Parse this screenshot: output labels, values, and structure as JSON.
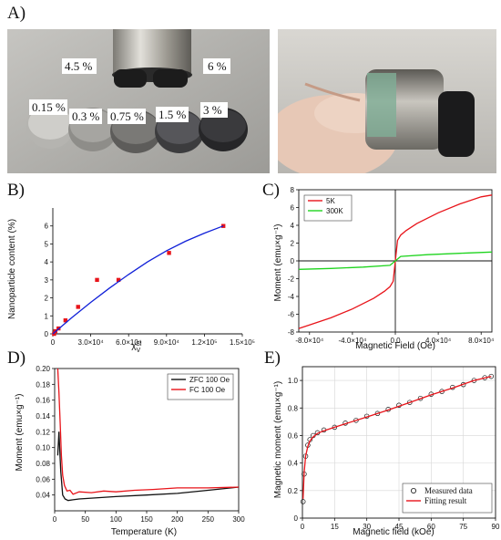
{
  "panels": {
    "a": "A)",
    "b": "B)",
    "c": "C)",
    "d": "D)",
    "e": "E)"
  },
  "photo_a": {
    "labels": [
      "4.5 %",
      "6 %",
      "0.15 %",
      "0.3 %",
      "0.75 %",
      "1.5 %",
      "3 %"
    ]
  },
  "colors": {
    "red": "#e8141a",
    "blue": "#1020d8",
    "green": "#1ed41e",
    "black": "#111111"
  },
  "chart_data": [
    {
      "id": "B",
      "type": "scatter",
      "xlabel": "χ",
      "xlabel_sub": "V",
      "xlabel_sup": "SI",
      "ylabel": "Nanoparticle content (%)",
      "xlim": [
        0,
        150000
      ],
      "ylim": [
        0,
        7
      ],
      "xticks": [
        0,
        30000,
        60000,
        90000,
        120000,
        150000
      ],
      "xtick_labels": [
        "0",
        "3.0×10⁴",
        "6.0×10⁴",
        "9.0×10⁴",
        "1.2×10⁵",
        "1.5×10⁵"
      ],
      "yticks": [
        0,
        1,
        2,
        3,
        4,
        5,
        6
      ],
      "series": [
        {
          "kind": "points",
          "color": "#e8141a",
          "x": [
            1000,
            2000,
            4500,
            10000,
            20000,
            35000,
            52000,
            92000,
            135000
          ],
          "y": [
            0,
            0.15,
            0.3,
            0.75,
            1.5,
            3.0,
            3.0,
            4.5,
            6.0
          ]
        },
        {
          "kind": "fit",
          "color": "#1020d8",
          "x": [
            0,
            15000,
            30000,
            45000,
            60000,
            75000,
            90000,
            105000,
            120000,
            135000
          ],
          "y": [
            0,
            0.9,
            1.75,
            2.55,
            3.3,
            4.0,
            4.62,
            5.15,
            5.6,
            6.0
          ]
        }
      ]
    },
    {
      "id": "C",
      "type": "line",
      "xlabel": "Magnetic Field (Oe)",
      "ylabel": "Moment (emu×g⁻¹)",
      "xlim": [
        -90000,
        90000
      ],
      "ylim": [
        -8,
        8
      ],
      "xticks": [
        -80000,
        -40000,
        0,
        40000,
        80000
      ],
      "xtick_labels": [
        "-8.0×10⁴",
        "-4.0×10⁴",
        "0.0",
        "4.0×10⁴",
        "8.0×10⁴"
      ],
      "yticks": [
        -8,
        -6,
        -4,
        -2,
        0,
        2,
        4,
        6,
        8
      ],
      "legend": "top-left",
      "series": [
        {
          "name": "5K",
          "color": "#e8141a",
          "x": [
            -90000,
            -80000,
            -60000,
            -40000,
            -20000,
            -10000,
            -5000,
            -2000,
            0,
            2000,
            5000,
            10000,
            20000,
            40000,
            60000,
            80000,
            90000
          ],
          "y": [
            -7.6,
            -7.2,
            -6.4,
            -5.4,
            -4.2,
            -3.4,
            -2.9,
            -2.3,
            0,
            2.3,
            2.9,
            3.4,
            4.2,
            5.4,
            6.4,
            7.2,
            7.4
          ]
        },
        {
          "name": "300K",
          "color": "#1ed41e",
          "x": [
            -90000,
            -60000,
            -30000,
            -5000,
            0,
            5000,
            30000,
            60000,
            90000
          ],
          "y": [
            -0.95,
            -0.85,
            -0.7,
            -0.5,
            0,
            0.5,
            0.7,
            0.85,
            1.0
          ]
        }
      ]
    },
    {
      "id": "D",
      "type": "line",
      "xlabel": "Temperature (K)",
      "ylabel": "Moment (emu×g⁻¹)",
      "xlim": [
        0,
        300
      ],
      "ylim": [
        0.02,
        0.2
      ],
      "xticks": [
        0,
        50,
        100,
        150,
        200,
        250,
        300
      ],
      "yticks": [
        0.04,
        0.06,
        0.08,
        0.1,
        0.12,
        0.14,
        0.16,
        0.18,
        0.2
      ],
      "ytick_labels": [
        "0.04",
        "0.06",
        "0.08",
        "0.10",
        "0.12",
        "0.14",
        "0.16",
        "0.18",
        "0.20"
      ],
      "legend": "top-right",
      "series": [
        {
          "name": "ZFC 100 Oe",
          "color": "#111111",
          "x": [
            5,
            7,
            10,
            13,
            17,
            22,
            30,
            40,
            60,
            100,
            150,
            200,
            250,
            300
          ],
          "y": [
            0.09,
            0.12,
            0.07,
            0.04,
            0.035,
            0.033,
            0.034,
            0.035,
            0.036,
            0.038,
            0.04,
            0.042,
            0.046,
            0.05
          ]
        },
        {
          "name": "FC 100 Oe",
          "color": "#e8141a",
          "x": [
            5,
            7,
            9,
            11,
            13,
            16,
            20,
            25,
            30,
            40,
            60,
            80,
            100,
            130,
            160,
            200,
            250,
            300
          ],
          "y": [
            0.2,
            0.17,
            0.13,
            0.09,
            0.065,
            0.052,
            0.045,
            0.046,
            0.041,
            0.044,
            0.043,
            0.045,
            0.044,
            0.046,
            0.047,
            0.049,
            0.049,
            0.05
          ]
        }
      ]
    },
    {
      "id": "E",
      "type": "scatter",
      "xlabel": "Magnetic field (kOe)",
      "ylabel": "Magnetic moment (emu×g⁻¹)",
      "xlim": [
        0,
        90
      ],
      "ylim": [
        0,
        1.1
      ],
      "xticks": [
        0,
        15,
        30,
        45,
        60,
        75,
        90
      ],
      "yticks": [
        0,
        0.2,
        0.4,
        0.6,
        0.8,
        1.0
      ],
      "ytick_labels": [
        "0",
        "0.2",
        "0.4",
        "0.6",
        "0.8",
        "1.0"
      ],
      "grid": true,
      "legend": "bottom-right",
      "series": [
        {
          "name": "Measured data",
          "kind": "points",
          "color": "#111111",
          "x": [
            0.3,
            0.8,
            1.5,
            2.5,
            3.5,
            5,
            7,
            10,
            15,
            20,
            25,
            30,
            35,
            40,
            45,
            50,
            55,
            60,
            65,
            70,
            75,
            80,
            85,
            88
          ],
          "y": [
            0.12,
            0.32,
            0.45,
            0.53,
            0.57,
            0.6,
            0.62,
            0.64,
            0.66,
            0.69,
            0.71,
            0.74,
            0.76,
            0.79,
            0.82,
            0.84,
            0.87,
            0.9,
            0.92,
            0.95,
            0.97,
            1.0,
            1.02,
            1.03
          ]
        },
        {
          "name": "Fitting result",
          "kind": "line",
          "color": "#e8141a",
          "x": [
            0.3,
            0.8,
            1.5,
            2.5,
            3.5,
            5,
            7,
            10,
            15,
            20,
            30,
            40,
            50,
            60,
            70,
            80,
            88
          ],
          "y": [
            0.14,
            0.33,
            0.45,
            0.52,
            0.56,
            0.59,
            0.615,
            0.635,
            0.66,
            0.685,
            0.735,
            0.785,
            0.84,
            0.895,
            0.945,
            1.0,
            1.03
          ]
        }
      ]
    }
  ]
}
